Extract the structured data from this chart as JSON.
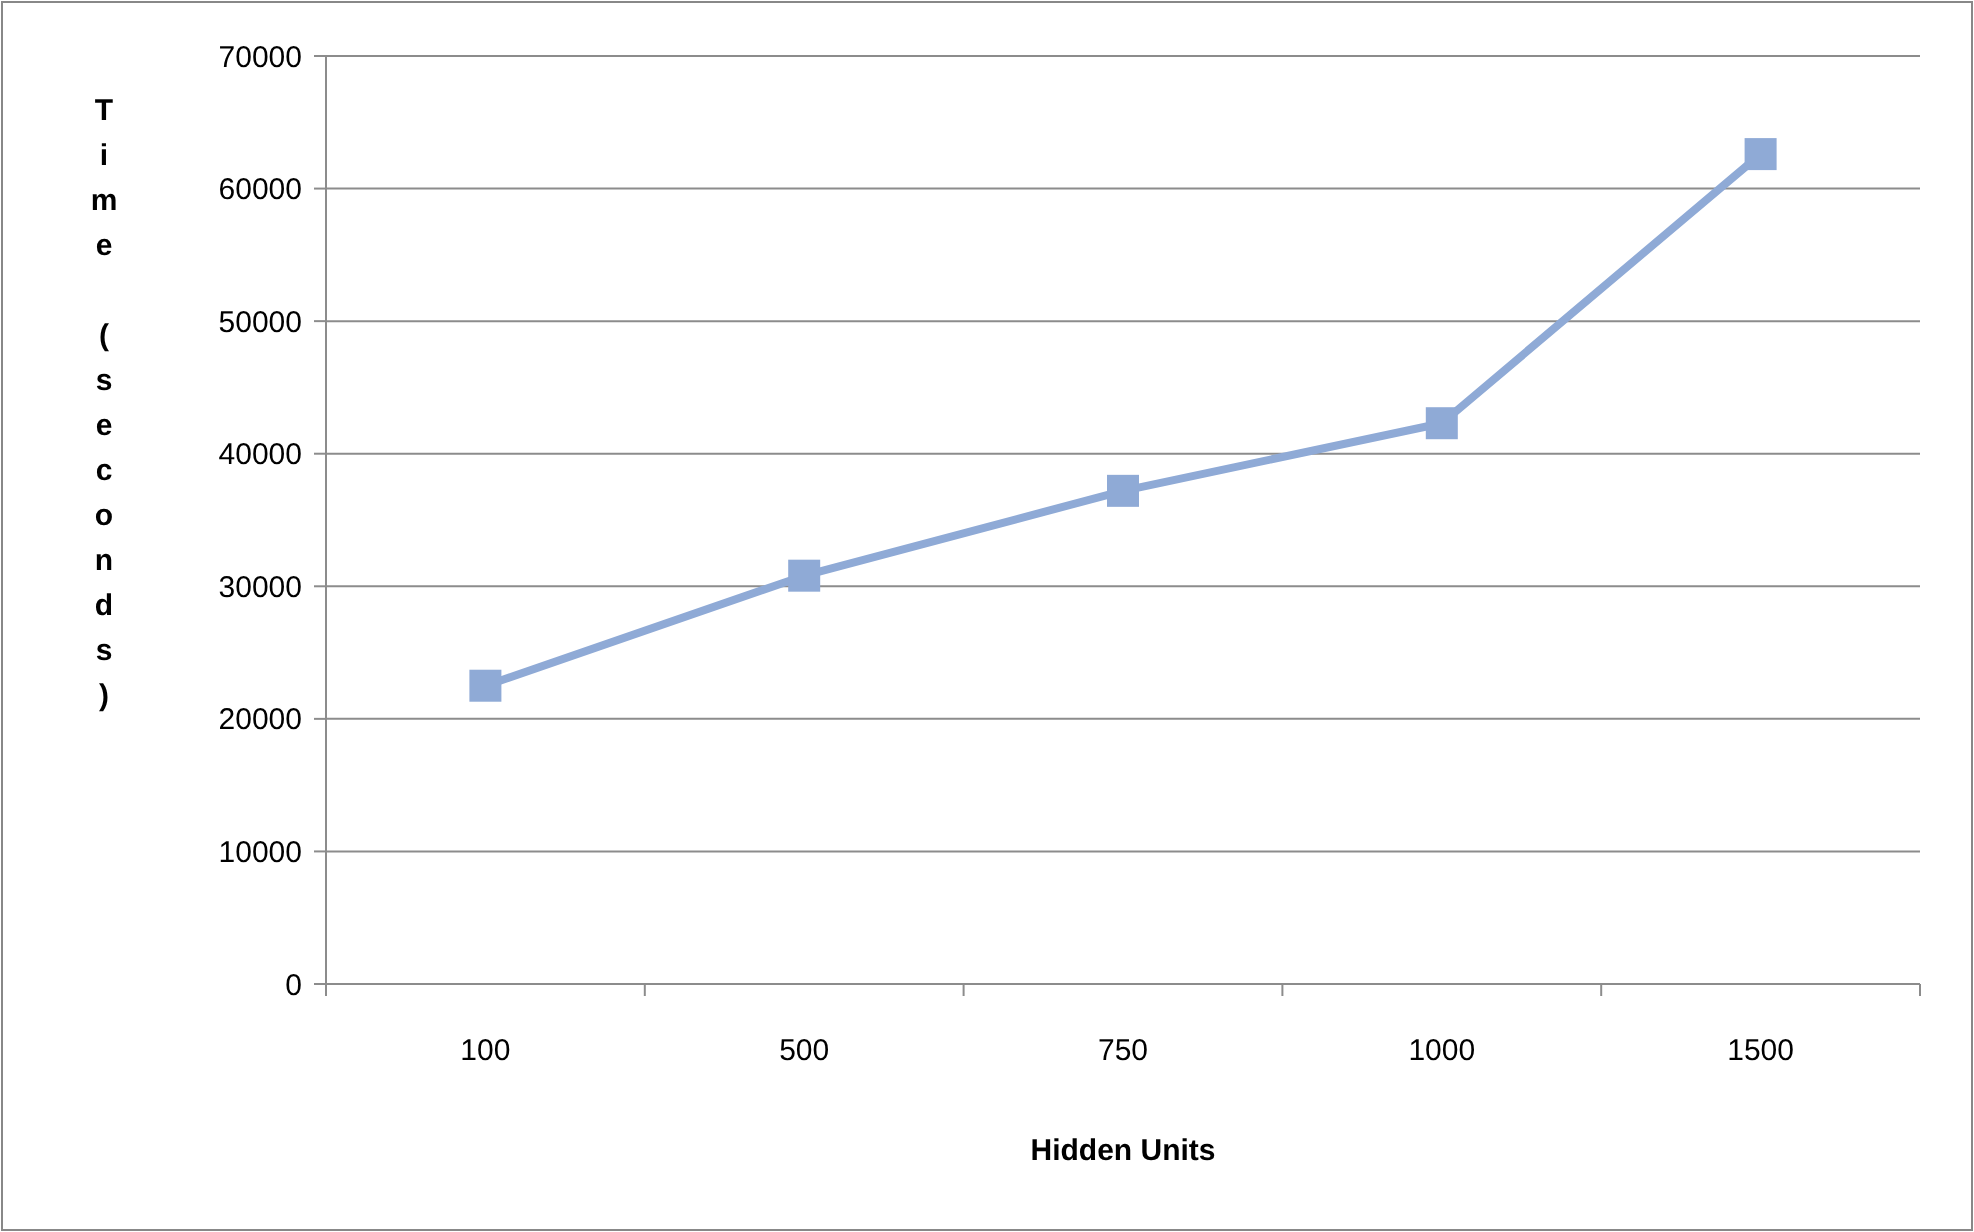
{
  "chart_data": {
    "type": "line",
    "xlabel": "Hidden Units",
    "ylabel": "Time (seconds)",
    "categories": [
      "100",
      "500",
      "750",
      "1000",
      "1500"
    ],
    "series": [
      {
        "color": "#8faad6",
        "values": [
          22500,
          30800,
          37200,
          42300,
          62600
        ]
      }
    ],
    "ylim": [
      0,
      70000
    ],
    "yticks": [
      0,
      10000,
      20000,
      30000,
      40000,
      50000,
      60000,
      70000
    ],
    "grid": "y",
    "marker": "square"
  }
}
